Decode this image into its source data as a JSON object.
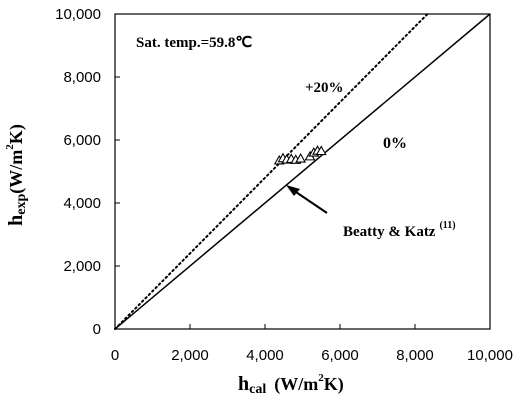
{
  "chart_data": {
    "type": "scatter",
    "xlabel": {
      "main": "h",
      "sub": "cal",
      "unit_pre": "(W/m",
      "sup": "2",
      "unit_post": "K)"
    },
    "ylabel": {
      "main": "h",
      "sub": "exp",
      "unit_pre": "(W/m",
      "sup": "2",
      "unit_post": "K)"
    },
    "xlim": [
      0,
      10000
    ],
    "ylim": [
      0,
      10000
    ],
    "xticks": [
      0,
      2000,
      4000,
      6000,
      8000,
      10000
    ],
    "yticks": [
      0,
      2000,
      4000,
      6000,
      8000,
      10000
    ],
    "xtick_labels": [
      "0",
      "2,000",
      "4,000",
      "6,000",
      "8,000",
      "10,000"
    ],
    "ytick_labels": [
      "0",
      "2,000",
      "4,000",
      "6,000",
      "8,000",
      "10,000"
    ],
    "grid": false,
    "annotation_sat": "Sat. temp.=59.8℃",
    "annotation_plus20": "+20%",
    "annotation_zero": "0%",
    "annotation_ref": "Beatty & Katz",
    "annotation_ref_sup": "(11)",
    "lines": [
      {
        "label": "0%",
        "style": "solid",
        "slope": 1.0
      },
      {
        "label": "+20%",
        "style": "dotted",
        "slope": 1.2
      }
    ],
    "series": [
      {
        "marker": "open-triangle",
        "points": [
          {
            "x": 4380,
            "y": 5350
          },
          {
            "x": 4480,
            "y": 5420
          },
          {
            "x": 4580,
            "y": 5380
          },
          {
            "x": 4700,
            "y": 5400
          },
          {
            "x": 4820,
            "y": 5370
          },
          {
            "x": 4950,
            "y": 5410
          },
          {
            "x": 5200,
            "y": 5480
          },
          {
            "x": 5300,
            "y": 5600
          },
          {
            "x": 5400,
            "y": 5660
          },
          {
            "x": 5500,
            "y": 5650
          }
        ]
      }
    ]
  }
}
